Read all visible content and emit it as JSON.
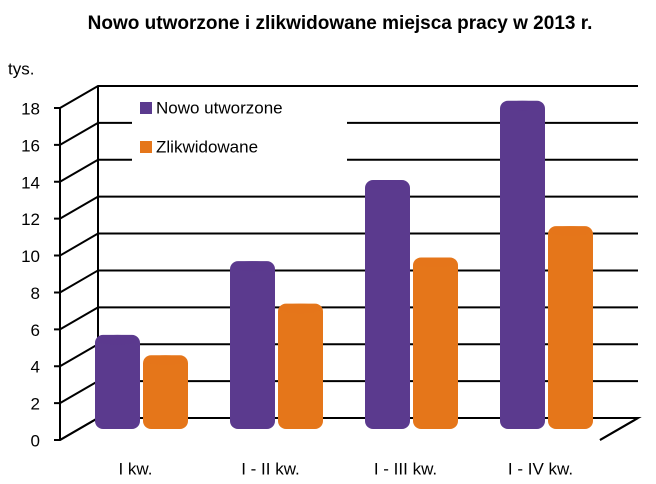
{
  "chart_data": {
    "type": "bar3d",
    "title": "Nowo utworzone i zlikwidowane miejsca pracy w 2013 r.",
    "y_axis_label": "tys.",
    "categories": [
      "I kw.",
      "I - II kw.",
      "I - III kw.",
      "I - IV kw."
    ],
    "series": [
      {
        "name": "Nowo utworzone",
        "color": "#5b3a8e",
        "values": [
          5.1,
          9.1,
          13.5,
          17.8
        ]
      },
      {
        "name": "Zlikwidowane",
        "color": "#e5761a",
        "values": [
          4.0,
          6.8,
          9.3,
          11.0
        ]
      }
    ],
    "ylim": [
      0,
      18
    ],
    "yticks": [
      0,
      2,
      4,
      6,
      8,
      10,
      12,
      14,
      16,
      18
    ],
    "grid": true,
    "legend": "top-left"
  }
}
